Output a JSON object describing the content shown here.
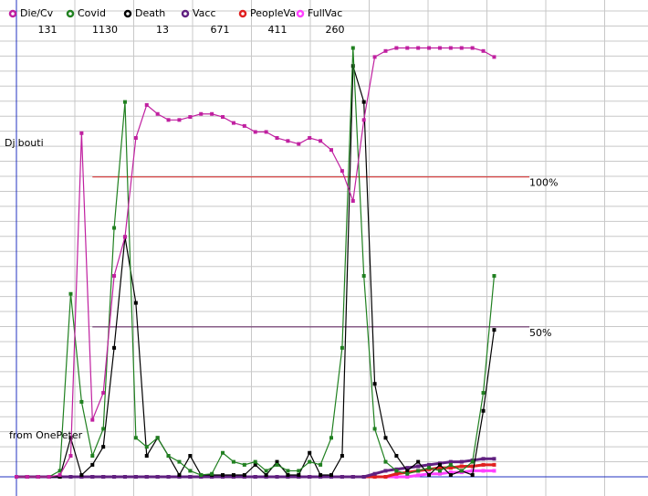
{
  "chart_data": {
    "type": "line",
    "title": "Djibouti",
    "subtitle": "from OnePeter",
    "x": [
      0,
      1,
      2,
      3,
      4,
      5,
      6,
      7,
      8,
      9,
      10,
      11,
      12,
      13,
      14,
      15,
      16,
      17,
      18,
      19,
      20,
      21,
      22,
      23,
      24,
      25,
      26,
      27,
      28,
      29,
      30,
      31,
      32,
      33,
      34,
      35,
      36,
      37,
      38,
      39,
      40,
      41,
      42,
      43,
      44
    ],
    "xlim": [
      0,
      58
    ],
    "ylim": [
      0,
      159
    ],
    "grid": true,
    "reference_lines": [
      {
        "value": 100,
        "label": "100%",
        "color": "#d82020"
      },
      {
        "value": 50,
        "label": "50%",
        "color": "#602060"
      }
    ],
    "series": [
      {
        "name": "Die/Cv",
        "total": 131,
        "color": "#c020a0",
        "values": [
          0,
          0,
          0,
          0,
          0.6,
          7,
          114.6,
          19,
          28,
          67,
          80,
          113,
          124,
          121,
          119,
          119,
          120,
          121,
          121,
          120,
          118,
          117,
          115,
          115,
          113,
          112,
          111,
          113,
          112,
          109,
          102,
          92,
          119,
          140,
          142,
          143,
          143,
          143,
          143,
          143,
          143,
          143,
          143,
          142,
          140
        ]
      },
      {
        "name": "Covid",
        "total": 1130,
        "color": "#208020",
        "values": [
          0,
          0,
          0,
          0,
          2,
          61,
          25,
          7,
          16,
          83,
          125,
          13,
          10,
          13,
          7,
          5,
          2,
          0.6,
          1,
          8,
          5,
          4,
          5,
          2,
          4,
          2,
          2,
          5,
          4,
          13,
          43,
          143,
          67,
          16,
          5,
          2,
          1,
          2,
          3,
          2,
          4,
          2,
          5,
          28,
          67
        ]
      },
      {
        "name": "Death",
        "total": 13,
        "color": "#000000",
        "values": [
          0,
          0,
          0,
          0,
          0,
          13,
          0.6,
          4,
          10,
          43,
          80,
          58,
          7,
          13,
          7,
          0.6,
          7,
          0.6,
          0.6,
          0.6,
          0.6,
          0.6,
          4,
          0.6,
          5,
          0.6,
          0.6,
          8,
          0.6,
          0.6,
          7,
          137,
          125,
          31,
          13,
          7,
          2,
          5,
          0.6,
          4,
          0.6,
          2,
          0.6,
          22,
          49
        ]
      },
      {
        "name": "Vacc",
        "total": 671,
        "color": "#602080",
        "values": [
          0,
          0,
          0,
          0,
          0,
          0,
          0,
          0,
          0,
          0,
          0,
          0,
          0,
          0,
          0,
          0,
          0,
          0,
          0,
          0,
          0,
          0,
          0,
          0,
          0,
          0,
          0,
          0,
          0,
          0,
          0,
          0,
          0,
          1,
          2,
          2.5,
          3,
          3.5,
          4,
          4.5,
          5,
          5,
          5.5,
          6,
          6
        ]
      },
      {
        "name": "PeopleVa",
        "total": 411,
        "color": "#e02020",
        "values": [
          0,
          0,
          0,
          0,
          0,
          0,
          0,
          0,
          0,
          0,
          0,
          0,
          0,
          0,
          0,
          0,
          0,
          0,
          0,
          0,
          0,
          0,
          0,
          0,
          0,
          0,
          0,
          0,
          0,
          0,
          0,
          0,
          0,
          0,
          0,
          1,
          1.5,
          2,
          2.5,
          3,
          3,
          3.5,
          3.5,
          4,
          4
        ]
      },
      {
        "name": "FullVac",
        "total": 260,
        "color": "#ff40ff",
        "values": [
          0,
          0,
          0,
          0,
          0,
          0,
          0,
          0,
          0,
          0,
          0,
          0,
          0,
          0,
          0,
          0,
          0,
          0,
          0,
          0,
          0,
          0,
          0,
          0,
          0,
          0,
          0,
          0,
          0,
          0,
          0,
          0,
          0,
          0,
          0,
          0,
          0,
          0.5,
          1,
          1,
          1.5,
          1.5,
          2,
          2,
          2
        ]
      }
    ]
  }
}
